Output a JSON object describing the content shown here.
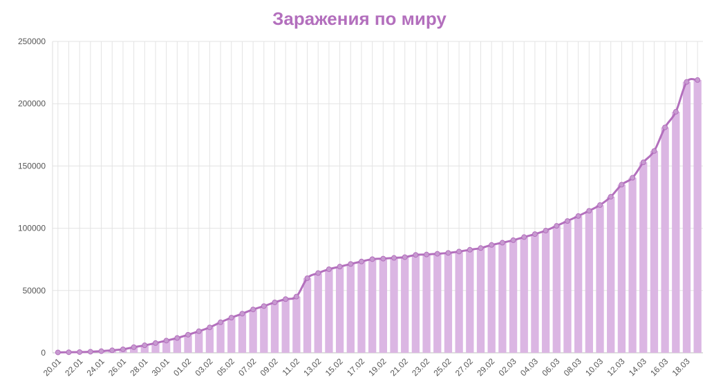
{
  "chart_data": {
    "type": "bar",
    "title": "Заражения по миру",
    "xlabel": "",
    "ylabel": "",
    "ylim": [
      0,
      250000
    ],
    "yticks": [
      0,
      50000,
      100000,
      150000,
      200000,
      250000
    ],
    "grid": true,
    "legend": "none",
    "colors": {
      "bar": "#dbb6e3",
      "line": "#b36fbd",
      "title": "#b36fbd",
      "grid": "#e3e3e3"
    },
    "categories": [
      "20.01",
      "21.01",
      "22.01",
      "23.01",
      "24.01",
      "25.01",
      "26.01",
      "27.01",
      "28.01",
      "29.01",
      "30.01",
      "31.01",
      "01.02",
      "02.02",
      "03.02",
      "04.02",
      "05.02",
      "06.02",
      "07.02",
      "08.02",
      "09.02",
      "10.02",
      "11.02",
      "12.02",
      "13.02",
      "14.02",
      "15.02",
      "16.02",
      "17.02",
      "18.02",
      "19.02",
      "20.02",
      "21.02",
      "22.02",
      "23.02",
      "24.02",
      "25.02",
      "26.02",
      "27.02",
      "28.02",
      "29.02",
      "01.03",
      "02.03",
      "03.03",
      "04.03",
      "05.03",
      "06.03",
      "07.03",
      "08.03",
      "09.03",
      "10.03",
      "11.03",
      "12.03",
      "13.03",
      "14.03",
      "15.03",
      "16.03",
      "17.03",
      "18.03",
      "19.03"
    ],
    "tick_labels": [
      "20.01",
      "22.01",
      "24.01",
      "26.01",
      "28.01",
      "30.01",
      "01.02",
      "03.02",
      "05.02",
      "07.02",
      "09.02",
      "11.02",
      "13.02",
      "15.02",
      "17.02",
      "19.02",
      "21.02",
      "23.02",
      "25.02",
      "27.02",
      "29.02",
      "02.03",
      "04.03",
      "06.03",
      "08.03",
      "10.03",
      "12.03",
      "14.03",
      "16.03",
      "18.03"
    ],
    "series": [
      {
        "type": "bar",
        "values": [
          300,
          440,
          580,
          850,
          1300,
          2000,
          2800,
          4500,
          6000,
          7800,
          9800,
          11900,
          14500,
          17300,
          20400,
          24500,
          28200,
          31400,
          34800,
          37500,
          40500,
          43100,
          45100,
          59900,
          64000,
          67100,
          69200,
          71300,
          73300,
          75200,
          75600,
          76200,
          76800,
          78600,
          78900,
          79500,
          80200,
          81300,
          82700,
          84100,
          86600,
          88400,
          90400,
          92900,
          95300,
          98100,
          101900,
          105800,
          109800,
          114000,
          118600,
          125300,
          135000,
          140500,
          152900,
          162000,
          181000,
          193500,
          217500,
          219000
        ]
      },
      {
        "type": "line",
        "values": [
          300,
          440,
          580,
          850,
          1300,
          2000,
          2800,
          4500,
          6000,
          7800,
          9800,
          11900,
          14500,
          17300,
          20400,
          24500,
          28200,
          31400,
          34800,
          37500,
          40500,
          43100,
          45100,
          59900,
          64000,
          67100,
          69200,
          71300,
          73300,
          75200,
          75600,
          76200,
          76800,
          78600,
          78900,
          79500,
          80200,
          81300,
          82700,
          84100,
          86600,
          88400,
          90400,
          92900,
          95300,
          98100,
          101900,
          105800,
          109800,
          114000,
          118600,
          125300,
          135000,
          140500,
          152900,
          162000,
          181000,
          193500,
          217500,
          219000
        ]
      }
    ]
  }
}
